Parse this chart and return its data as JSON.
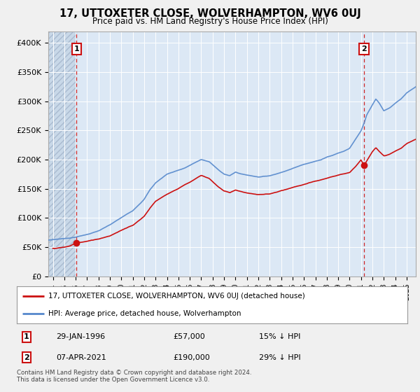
{
  "title": "17, UTTOXETER CLOSE, WOLVERHAMPTON, WV6 0UJ",
  "subtitle": "Price paid vs. HM Land Registry's House Price Index (HPI)",
  "ylim": [
    0,
    420000
  ],
  "yticks": [
    0,
    50000,
    100000,
    150000,
    200000,
    250000,
    300000,
    350000,
    400000
  ],
  "ytick_labels": [
    "£0",
    "£50K",
    "£100K",
    "£150K",
    "£200K",
    "£250K",
    "£300K",
    "£350K",
    "£400K"
  ],
  "xmin": 1993.6,
  "xmax": 2025.8,
  "bg_color": "#f0f0f0",
  "plot_bg": "#dce8f5",
  "hpi_color": "#5588cc",
  "price_color": "#cc1111",
  "marker1_x": 1996.08,
  "marker1_y": 57000,
  "marker2_x": 2021.27,
  "marker2_y": 190000,
  "sale1_label": "1",
  "sale2_label": "2",
  "sale1_date": "29-JAN-1996",
  "sale1_price": "£57,000",
  "sale1_hpi": "15% ↓ HPI",
  "sale2_date": "07-APR-2021",
  "sale2_price": "£190,000",
  "sale2_hpi": "29% ↓ HPI",
  "legend_line1": "17, UTTOXETER CLOSE, WOLVERHAMPTON, WV6 0UJ (detached house)",
  "legend_line2": "HPI: Average price, detached house, Wolverhampton",
  "footer": "Contains HM Land Registry data © Crown copyright and database right 2024.\nThis data is licensed under the Open Government Licence v3.0.",
  "dashed_x1": 1996.08,
  "dashed_x2": 2021.27,
  "hpi_years": [
    1993.5,
    1994.0,
    1995.0,
    1995.5,
    1996.0,
    1997.0,
    1998.0,
    1999.0,
    2000.0,
    2001.0,
    2002.0,
    2002.5,
    2003.0,
    2004.0,
    2005.0,
    2005.5,
    2006.0,
    2007.0,
    2007.7,
    2008.5,
    2009.0,
    2009.5,
    2010.0,
    2010.5,
    2011.0,
    2012.0,
    2013.0,
    2014.0,
    2015.0,
    2016.0,
    2017.0,
    2017.5,
    2018.0,
    2018.5,
    2019.0,
    2019.5,
    2020.0,
    2020.5,
    2021.0,
    2021.3,
    2021.5,
    2022.0,
    2022.3,
    2022.6,
    2023.0,
    2023.5,
    2024.0,
    2024.5,
    2025.0,
    2025.8
  ],
  "hpi_vals": [
    62000,
    63000,
    65000,
    66000,
    67500,
    72000,
    78000,
    88000,
    100000,
    112000,
    132000,
    148000,
    160000,
    175000,
    182000,
    185000,
    190000,
    200000,
    196000,
    182000,
    175000,
    172000,
    178000,
    175000,
    173000,
    170000,
    172000,
    178000,
    185000,
    192000,
    198000,
    200000,
    205000,
    208000,
    212000,
    215000,
    220000,
    235000,
    250000,
    265000,
    278000,
    295000,
    305000,
    298000,
    285000,
    290000,
    298000,
    305000,
    315000,
    325000
  ],
  "price_years": [
    1994.0,
    1995.0,
    1995.5,
    1996.0,
    1997.0,
    1998.0,
    1999.0,
    2000.0,
    2001.0,
    2002.0,
    2002.5,
    2003.0,
    2004.0,
    2005.0,
    2005.5,
    2006.0,
    2007.0,
    2007.7,
    2008.5,
    2009.0,
    2009.5,
    2010.0,
    2010.5,
    2011.0,
    2012.0,
    2013.0,
    2014.0,
    2015.0,
    2016.0,
    2017.0,
    2017.5,
    2018.0,
    2018.5,
    2019.0,
    2019.5,
    2020.0,
    2020.5,
    2021.0,
    2021.27,
    2021.5,
    2022.0,
    2022.3,
    2022.6,
    2023.0,
    2023.5,
    2024.0,
    2024.5,
    2025.0,
    2025.8
  ],
  "price_vals": [
    48000,
    50000,
    52000,
    57000,
    60000,
    64000,
    70000,
    80000,
    88000,
    104000,
    118000,
    130000,
    142000,
    152000,
    158000,
    163000,
    175000,
    170000,
    155000,
    148000,
    145000,
    150000,
    147000,
    145000,
    142000,
    143000,
    148000,
    153000,
    158000,
    163000,
    165000,
    168000,
    171000,
    173000,
    175000,
    178000,
    188000,
    200000,
    190000,
    198000,
    215000,
    222000,
    215000,
    207000,
    210000,
    215000,
    220000,
    228000,
    235000
  ]
}
